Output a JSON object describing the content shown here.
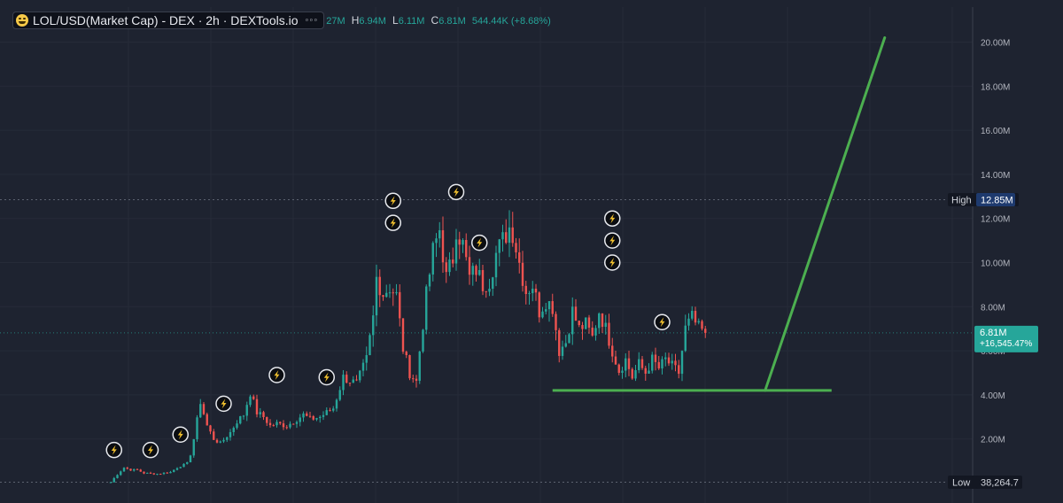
{
  "legend": {
    "title": "LOL/USD(Market Cap) - DEX · 2h · DEXTools.io",
    "icon": "laughing-emoji-icon",
    "more_icon": "more-dots-icon",
    "open_partial": "27M",
    "high_key": "H",
    "high": "6.94M",
    "low_key": "L",
    "low": "6.11M",
    "close_key": "C",
    "close": "6.81M",
    "change": "544.44K (+8.68%)"
  },
  "colors": {
    "background": "#1e2330",
    "up": "#26a69a",
    "down": "#ef5350",
    "annotation_line": "#4caf50",
    "high_badge": "#1e3a6e",
    "price_badge": "#26a69a"
  },
  "badges": {
    "high_label": "High",
    "high_value": "12.85M",
    "low_label": "Low",
    "low_value": "38,264.7",
    "last_price": "6.81M",
    "last_change": "+16,545.47%"
  },
  "chart_data": {
    "type": "candlestick",
    "y_unit": "market cap (USD)",
    "ylim": [
      0,
      20.9
    ],
    "y_ticks": [
      "2.00M",
      "4.00M",
      "6.00M",
      "8.00M",
      "10.00M",
      "12.00M",
      "14.00M",
      "16.00M",
      "18.00M",
      "20.00M"
    ],
    "y_tick_values": [
      2,
      4,
      6,
      8,
      10,
      12,
      14,
      16,
      18,
      20
    ],
    "grid": true,
    "high_level": 12.85,
    "low_level": 0.038,
    "last_price_level": 6.81,
    "support_line": {
      "from_index": 133,
      "to_index": 217,
      "level": 4.2
    },
    "projection_line": {
      "from_index": 197,
      "from_level": 4.2,
      "to_index": 233,
      "to_level": 20.2
    },
    "event_markers": [
      {
        "index": 1,
        "level": 1.5
      },
      {
        "index": 12,
        "level": 1.5
      },
      {
        "index": 21,
        "level": 2.2
      },
      {
        "index": 34,
        "level": 3.6
      },
      {
        "index": 50,
        "level": 4.9
      },
      {
        "index": 65,
        "level": 4.8
      },
      {
        "index": 85,
        "level": 12.8
      },
      {
        "index": 85,
        "level": 11.8
      },
      {
        "index": 104,
        "level": 13.2
      },
      {
        "index": 111,
        "level": 10.9
      },
      {
        "index": 151,
        "level": 12.0
      },
      {
        "index": 151,
        "level": 11.0
      },
      {
        "index": 151,
        "level": 10.0
      },
      {
        "index": 166,
        "level": 7.3
      }
    ],
    "anchor_closes": [
      [
        0,
        0.04
      ],
      [
        2,
        0.4
      ],
      [
        4,
        0.7
      ],
      [
        6,
        0.6
      ],
      [
        8,
        0.6
      ],
      [
        10,
        0.45
      ],
      [
        14,
        0.42
      ],
      [
        18,
        0.5
      ],
      [
        20,
        0.7
      ],
      [
        23,
        0.9
      ],
      [
        24,
        1.3
      ],
      [
        25,
        2.0
      ],
      [
        27,
        3.7
      ],
      [
        29,
        2.6
      ],
      [
        31,
        2.0
      ],
      [
        33,
        1.8
      ],
      [
        36,
        2.3
      ],
      [
        38,
        2.8
      ],
      [
        40,
        3.1
      ],
      [
        42,
        4.1
      ],
      [
        44,
        3.2
      ],
      [
        46,
        3.0
      ],
      [
        48,
        2.6
      ],
      [
        50,
        2.7
      ],
      [
        53,
        2.6
      ],
      [
        56,
        2.9
      ],
      [
        58,
        3.1
      ],
      [
        60,
        2.9
      ],
      [
        63,
        3.0
      ],
      [
        67,
        3.4
      ],
      [
        70,
        4.8
      ],
      [
        74,
        4.5
      ],
      [
        77,
        5.6
      ],
      [
        79,
        7.5
      ],
      [
        80,
        9.3
      ],
      [
        82,
        8.6
      ],
      [
        84,
        8.9
      ],
      [
        86,
        8.5
      ],
      [
        88,
        6.1
      ],
      [
        90,
        5.0
      ],
      [
        92,
        4.6
      ],
      [
        93,
        6.0
      ],
      [
        95,
        8.5
      ],
      [
        97,
        10.5
      ],
      [
        99,
        11.5
      ],
      [
        101,
        9.3
      ],
      [
        103,
        10.2
      ],
      [
        104,
        11.6
      ],
      [
        106,
        10.8
      ],
      [
        108,
        9.3
      ],
      [
        110,
        9.7
      ],
      [
        112,
        9.0
      ],
      [
        114,
        9.2
      ],
      [
        116,
        10.4
      ],
      [
        118,
        11.0
      ],
      [
        120,
        11.6
      ],
      [
        121,
        11.4
      ],
      [
        123,
        10.0
      ],
      [
        125,
        8.7
      ],
      [
        127,
        9.0
      ],
      [
        129,
        7.8
      ],
      [
        131,
        8.3
      ],
      [
        133,
        8.0
      ],
      [
        135,
        6.0
      ],
      [
        137,
        6.4
      ],
      [
        139,
        7.8
      ],
      [
        141,
        7.0
      ],
      [
        143,
        7.2
      ],
      [
        145,
        6.6
      ],
      [
        147,
        7.8
      ],
      [
        149,
        7.0
      ],
      [
        151,
        6.0
      ],
      [
        153,
        5.1
      ],
      [
        155,
        5.6
      ],
      [
        157,
        4.8
      ],
      [
        159,
        5.4
      ],
      [
        161,
        5.0
      ],
      [
        163,
        5.6
      ],
      [
        165,
        5.2
      ],
      [
        167,
        5.6
      ],
      [
        169,
        5.3
      ],
      [
        171,
        5.0
      ],
      [
        173,
        7.0
      ],
      [
        175,
        7.5
      ],
      [
        177,
        7.0
      ],
      [
        179,
        6.81
      ]
    ],
    "candle_count": 180
  }
}
